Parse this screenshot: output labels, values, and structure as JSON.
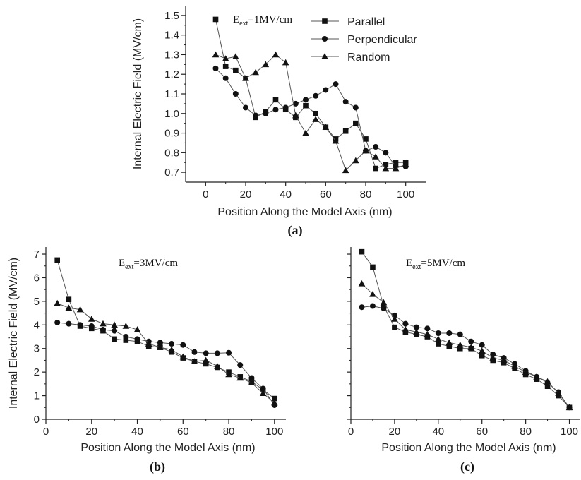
{
  "figure": {
    "panels": [
      "a",
      "b",
      "c"
    ]
  },
  "chart_data": [
    {
      "type": "line",
      "caption": "(a)",
      "annotation": {
        "main": "E",
        "sub": "ext",
        "rest": "=1MV/cm"
      },
      "xlabel": "Position Along the Model Axis (nm)",
      "ylabel": "Internal Electric Field (MV/cm)",
      "xlim": [
        -10,
        110
      ],
      "ylim": [
        0.65,
        1.55
      ],
      "xticks": [
        0,
        20,
        40,
        60,
        80,
        100
      ],
      "yticks": [
        0.7,
        0.8,
        0.9,
        1.0,
        1.1,
        1.2,
        1.3,
        1.4,
        1.5
      ],
      "ytick_labels": [
        "0.7",
        "0.8",
        "0.9",
        "1.0",
        "1.1",
        "1.2",
        "1.3",
        "1.4",
        "1.5"
      ],
      "legend": {
        "position": "top-right"
      },
      "series": [
        {
          "name": "Parallel",
          "marker": "square",
          "x": [
            5,
            10,
            15,
            20,
            25,
            30,
            35,
            40,
            45,
            50,
            55,
            60,
            65,
            70,
            75,
            80,
            85,
            90,
            95,
            100
          ],
          "y": [
            1.48,
            1.24,
            1.22,
            1.18,
            0.98,
            1.01,
            1.07,
            1.02,
            0.98,
            1.04,
            1.0,
            0.93,
            0.87,
            0.91,
            0.95,
            0.87,
            0.72,
            0.74,
            0.75,
            0.75
          ]
        },
        {
          "name": "Perpendicular",
          "marker": "circle",
          "x": [
            5,
            10,
            15,
            20,
            25,
            30,
            35,
            40,
            45,
            50,
            55,
            60,
            65,
            70,
            75,
            80,
            85,
            90,
            95,
            100
          ],
          "y": [
            1.23,
            1.18,
            1.1,
            1.03,
            0.99,
            1.0,
            1.02,
            1.03,
            1.05,
            1.07,
            1.09,
            1.12,
            1.15,
            1.06,
            1.03,
            0.81,
            0.83,
            0.8,
            0.73,
            0.73
          ]
        },
        {
          "name": "Random",
          "marker": "triangle",
          "x": [
            5,
            10,
            15,
            20,
            25,
            30,
            35,
            40,
            45,
            50,
            55,
            60,
            65,
            70,
            75,
            80,
            85,
            90,
            95,
            100
          ],
          "y": [
            1.3,
            1.28,
            1.29,
            1.18,
            1.21,
            1.25,
            1.3,
            1.26,
            0.99,
            0.9,
            0.97,
            0.93,
            0.86,
            0.71,
            0.76,
            0.81,
            0.78,
            0.72,
            0.72,
            0.74
          ]
        }
      ]
    },
    {
      "type": "line",
      "caption": "(b)",
      "annotation": {
        "main": "E",
        "sub": "ext",
        "rest": "=3MV/cm"
      },
      "xlabel": "Position Along the Model Axis (nm)",
      "ylabel": "Internal Electric Field (MV/cm)",
      "xlim": [
        0,
        105
      ],
      "ylim": [
        0,
        7.3
      ],
      "xticks": [
        0,
        20,
        40,
        60,
        80,
        100
      ],
      "yticks": [
        0,
        1,
        2,
        3,
        4,
        5,
        6,
        7
      ],
      "ytick_labels": [
        "0",
        "1",
        "2",
        "3",
        "4",
        "5",
        "6",
        "7"
      ],
      "series": [
        {
          "name": "Parallel",
          "marker": "square",
          "x": [
            5,
            10,
            15,
            20,
            25,
            30,
            35,
            40,
            45,
            50,
            55,
            60,
            65,
            70,
            75,
            80,
            85,
            90,
            95,
            100
          ],
          "y": [
            6.75,
            5.08,
            3.95,
            3.85,
            3.75,
            3.4,
            3.35,
            3.3,
            3.1,
            3.05,
            2.85,
            2.6,
            2.45,
            2.35,
            2.2,
            2.0,
            1.8,
            1.6,
            1.25,
            0.88
          ]
        },
        {
          "name": "Perpendicular",
          "marker": "circle",
          "x": [
            5,
            10,
            15,
            20,
            25,
            30,
            35,
            40,
            45,
            50,
            55,
            60,
            65,
            70,
            75,
            80,
            85,
            90,
            95,
            100
          ],
          "y": [
            4.1,
            4.05,
            4.0,
            3.95,
            3.8,
            3.75,
            3.5,
            3.4,
            3.3,
            3.25,
            3.2,
            3.15,
            2.85,
            2.8,
            2.8,
            2.82,
            2.3,
            1.75,
            1.3,
            0.6
          ]
        },
        {
          "name": "Random",
          "marker": "triangle",
          "x": [
            5,
            10,
            15,
            20,
            25,
            30,
            35,
            40,
            45,
            50,
            55,
            60,
            65,
            70,
            75,
            80,
            85,
            90,
            95,
            100
          ],
          "y": [
            4.92,
            4.72,
            4.65,
            4.25,
            4.05,
            4.0,
            3.95,
            3.8,
            3.2,
            3.05,
            2.95,
            2.65,
            2.45,
            2.5,
            2.25,
            1.9,
            1.75,
            1.55,
            1.1,
            0.7
          ]
        }
      ]
    },
    {
      "type": "line",
      "caption": "(c)",
      "annotation": {
        "main": "E",
        "sub": "ext",
        "rest": "=5MV/cm"
      },
      "xlabel": "Position Along the Model Axis (nm)",
      "ylabel": "",
      "xlim": [
        0,
        105
      ],
      "ylim": [
        0,
        7.3
      ],
      "xticks": [
        0,
        20,
        40,
        60,
        80,
        100
      ],
      "yticks": [
        0,
        1,
        2,
        3,
        4,
        5,
        6,
        7
      ],
      "ytick_labels": [],
      "series": [
        {
          "name": "Parallel",
          "marker": "square",
          "x": [
            5,
            10,
            15,
            20,
            25,
            30,
            35,
            40,
            45,
            50,
            55,
            60,
            65,
            70,
            75,
            80,
            85,
            90,
            95,
            100
          ],
          "y": [
            7.1,
            6.45,
            4.8,
            3.9,
            3.7,
            3.6,
            3.5,
            3.2,
            3.1,
            3.0,
            3.0,
            2.7,
            2.5,
            2.4,
            2.15,
            1.9,
            1.7,
            1.4,
            1.0,
            0.5
          ]
        },
        {
          "name": "Perpendicular",
          "marker": "circle",
          "x": [
            5,
            10,
            15,
            20,
            25,
            30,
            35,
            40,
            45,
            50,
            55,
            60,
            65,
            70,
            75,
            80,
            85,
            90,
            95,
            100
          ],
          "y": [
            4.75,
            4.8,
            4.7,
            4.4,
            4.05,
            3.9,
            3.85,
            3.65,
            3.65,
            3.6,
            3.3,
            3.15,
            2.75,
            2.6,
            2.35,
            2.05,
            1.8,
            1.55,
            1.15,
            0.5
          ]
        },
        {
          "name": "Random",
          "marker": "triangle",
          "x": [
            5,
            10,
            15,
            20,
            25,
            30,
            35,
            40,
            45,
            50,
            55,
            60,
            65,
            70,
            75,
            80,
            85,
            90,
            95,
            100
          ],
          "y": [
            5.75,
            5.3,
            4.95,
            4.25,
            3.8,
            3.7,
            3.6,
            3.4,
            3.25,
            3.15,
            3.05,
            2.9,
            2.6,
            2.5,
            2.25,
            2.0,
            1.8,
            1.6,
            1.1,
            0.5
          ]
        }
      ]
    }
  ]
}
